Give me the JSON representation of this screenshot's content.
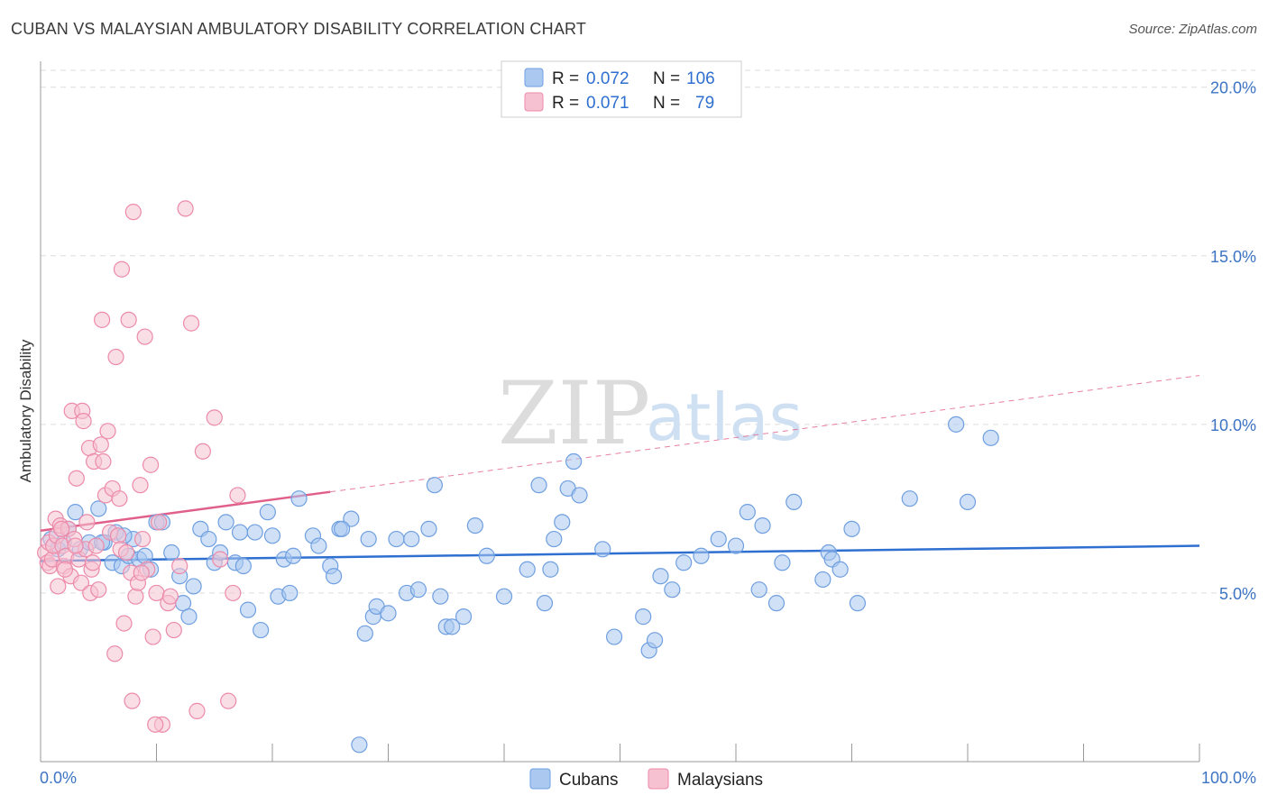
{
  "header": {
    "title": "CUBAN VS MALAYSIAN AMBULATORY DISABILITY CORRELATION CHART",
    "source": "Source: ZipAtlas.com"
  },
  "legend": {
    "rows": [
      {
        "r_label": "R =",
        "r_value": "0.072",
        "n_label": "N =",
        "n_value": "106",
        "color": "#7aaae6"
      },
      {
        "r_label": "R =",
        "r_value": "0.071",
        "n_label": "N =",
        "n_value": "79",
        "color": "#f0a0bc"
      }
    ]
  },
  "bottom_legend": [
    {
      "label": "Cubans",
      "color": "#7aaae6"
    },
    {
      "label": "Malaysians",
      "color": "#f0a0bc"
    }
  ],
  "watermark": {
    "zip": "ZIP",
    "atlas": "atlas"
  },
  "colors": {
    "blue_fill": "#aac8f0",
    "blue_stroke": "#6f9fe0",
    "blue_line": "#2f6fd0",
    "pink_fill": "#f6c2d2",
    "pink_stroke": "#ec8aaa",
    "pink_line": "#e0608a",
    "grid": "#dddddd",
    "axis": "#999999"
  },
  "chart_data": {
    "type": "scatter",
    "title": "CUBAN VS MALAYSIAN AMBULATORY DISABILITY CORRELATION CHART",
    "xlabel": "",
    "ylabel": "Ambulatory Disability",
    "xlim": [
      0,
      100
    ],
    "ylim": [
      0,
      20.5
    ],
    "x_tick_labels": [
      "0.0%",
      "100.0%"
    ],
    "y_ticks": [
      5,
      10,
      15,
      20
    ],
    "y_tick_labels": [
      "5.0%",
      "10.0%",
      "15.0%",
      "20.0%"
    ],
    "grid": true,
    "legend_position": "top-center",
    "series": [
      {
        "name": "Cubans",
        "r": 0.072,
        "n": 106,
        "trend": {
          "x0": 0,
          "y0": 5.95,
          "x1": 100,
          "y1": 6.4
        },
        "points": [
          [
            0.9,
            6.6
          ],
          [
            1.5,
            6.3
          ],
          [
            2.0,
            6.5
          ],
          [
            2.4,
            6.9
          ],
          [
            3.0,
            7.4
          ],
          [
            3.4,
            6.3
          ],
          [
            4.2,
            6.5
          ],
          [
            5.0,
            7.5
          ],
          [
            5.5,
            6.5
          ],
          [
            6.2,
            5.9
          ],
          [
            6.5,
            6.8
          ],
          [
            7.0,
            5.8
          ],
          [
            7.6,
            6.1
          ],
          [
            8.0,
            6.6
          ],
          [
            8.5,
            6.0
          ],
          [
            9.0,
            6.1
          ],
          [
            9.5,
            5.7
          ],
          [
            10.0,
            7.1
          ],
          [
            10.5,
            7.1
          ],
          [
            11.3,
            6.2
          ],
          [
            12.0,
            5.5
          ],
          [
            12.3,
            4.7
          ],
          [
            12.8,
            4.3
          ],
          [
            13.2,
            5.2
          ],
          [
            13.8,
            6.9
          ],
          [
            14.5,
            6.6
          ],
          [
            15.0,
            5.9
          ],
          [
            15.5,
            6.2
          ],
          [
            16.0,
            7.1
          ],
          [
            16.8,
            5.9
          ],
          [
            17.2,
            6.8
          ],
          [
            17.5,
            5.8
          ],
          [
            17.9,
            4.5
          ],
          [
            18.5,
            6.8
          ],
          [
            19.0,
            3.9
          ],
          [
            19.6,
            7.4
          ],
          [
            20.0,
            6.7
          ],
          [
            20.5,
            4.9
          ],
          [
            21.0,
            6.0
          ],
          [
            21.5,
            5.0
          ],
          [
            21.8,
            6.1
          ],
          [
            22.3,
            7.8
          ],
          [
            23.5,
            6.7
          ],
          [
            24.0,
            6.4
          ],
          [
            25.0,
            5.8
          ],
          [
            25.3,
            5.5
          ],
          [
            25.8,
            6.9
          ],
          [
            26.8,
            7.2
          ],
          [
            27.5,
            0.5
          ],
          [
            28.0,
            3.8
          ],
          [
            28.3,
            6.6
          ],
          [
            28.7,
            4.3
          ],
          [
            29.0,
            4.6
          ],
          [
            30.0,
            4.4
          ],
          [
            30.7,
            6.6
          ],
          [
            31.6,
            5.0
          ],
          [
            32.0,
            6.6
          ],
          [
            32.6,
            5.1
          ],
          [
            33.5,
            6.9
          ],
          [
            34.0,
            8.2
          ],
          [
            34.5,
            4.9
          ],
          [
            35.0,
            4.0
          ],
          [
            35.5,
            4.0
          ],
          [
            36.5,
            4.3
          ],
          [
            37.5,
            7.0
          ],
          [
            38.5,
            6.1
          ],
          [
            40.0,
            4.9
          ],
          [
            42.0,
            5.7
          ],
          [
            43.0,
            8.2
          ],
          [
            43.5,
            4.7
          ],
          [
            44.0,
            5.7
          ],
          [
            44.3,
            6.6
          ],
          [
            45.0,
            7.1
          ],
          [
            45.5,
            8.1
          ],
          [
            46.0,
            8.9
          ],
          [
            46.5,
            7.9
          ],
          [
            48.5,
            6.3
          ],
          [
            49.5,
            3.7
          ],
          [
            52.0,
            4.3
          ],
          [
            52.5,
            3.3
          ],
          [
            53.0,
            3.6
          ],
          [
            53.5,
            5.5
          ],
          [
            54.5,
            5.1
          ],
          [
            55.5,
            5.9
          ],
          [
            57.0,
            6.1
          ],
          [
            58.5,
            6.6
          ],
          [
            60.0,
            6.4
          ],
          [
            61.0,
            7.4
          ],
          [
            62.0,
            5.1
          ],
          [
            62.3,
            7.0
          ],
          [
            63.5,
            4.7
          ],
          [
            64.0,
            5.9
          ],
          [
            65.0,
            7.7
          ],
          [
            67.5,
            5.4
          ],
          [
            68.0,
            6.2
          ],
          [
            68.3,
            6.0
          ],
          [
            69.0,
            5.7
          ],
          [
            70.0,
            6.9
          ],
          [
            70.5,
            4.7
          ],
          [
            75.0,
            7.8
          ],
          [
            79.0,
            10.0
          ],
          [
            80.0,
            7.7
          ],
          [
            82.0,
            9.6
          ],
          [
            7.2,
            6.7
          ],
          [
            5.3,
            6.5
          ],
          [
            26.0,
            6.9
          ]
        ]
      },
      {
        "name": "Malaysians",
        "r": 0.071,
        "n": 79,
        "trend": {
          "x0": 0,
          "y0": 6.85,
          "x1": 25,
          "y1": 8.0,
          "dash_to_x": 100,
          "dash_to_y": 11.45
        },
        "points": [
          [
            0.4,
            6.2
          ],
          [
            0.6,
            5.9
          ],
          [
            0.7,
            6.5
          ],
          [
            0.8,
            5.8
          ],
          [
            1.0,
            6.0
          ],
          [
            1.1,
            6.4
          ],
          [
            1.3,
            7.2
          ],
          [
            1.4,
            6.7
          ],
          [
            1.5,
            5.2
          ],
          [
            1.7,
            7.0
          ],
          [
            1.9,
            6.4
          ],
          [
            2.0,
            5.8
          ],
          [
            2.2,
            6.1
          ],
          [
            2.4,
            6.9
          ],
          [
            2.6,
            5.5
          ],
          [
            2.7,
            10.4
          ],
          [
            2.9,
            6.6
          ],
          [
            3.1,
            8.4
          ],
          [
            3.3,
            6.0
          ],
          [
            3.5,
            5.3
          ],
          [
            3.6,
            10.4
          ],
          [
            3.7,
            10.1
          ],
          [
            3.9,
            6.3
          ],
          [
            4.0,
            7.1
          ],
          [
            4.2,
            9.3
          ],
          [
            4.3,
            5.0
          ],
          [
            4.4,
            5.7
          ],
          [
            4.6,
            8.9
          ],
          [
            4.8,
            6.4
          ],
          [
            5.0,
            5.1
          ],
          [
            5.2,
            9.4
          ],
          [
            5.3,
            13.1
          ],
          [
            5.4,
            8.9
          ],
          [
            5.6,
            7.9
          ],
          [
            5.8,
            9.8
          ],
          [
            6.0,
            6.8
          ],
          [
            6.2,
            8.1
          ],
          [
            6.4,
            3.2
          ],
          [
            6.5,
            12.0
          ],
          [
            6.7,
            6.7
          ],
          [
            6.9,
            6.3
          ],
          [
            7.0,
            14.6
          ],
          [
            7.2,
            4.1
          ],
          [
            7.4,
            6.2
          ],
          [
            7.6,
            13.1
          ],
          [
            7.8,
            5.6
          ],
          [
            8.0,
            16.3
          ],
          [
            8.2,
            4.9
          ],
          [
            8.4,
            5.3
          ],
          [
            8.6,
            8.2
          ],
          [
            8.8,
            6.6
          ],
          [
            9.0,
            12.6
          ],
          [
            9.2,
            5.7
          ],
          [
            9.5,
            8.8
          ],
          [
            9.7,
            3.7
          ],
          [
            10.0,
            5.0
          ],
          [
            10.2,
            7.1
          ],
          [
            10.5,
            1.1
          ],
          [
            11.0,
            4.7
          ],
          [
            11.5,
            3.9
          ],
          [
            12.0,
            5.8
          ],
          [
            12.5,
            16.4
          ],
          [
            13.0,
            13.0
          ],
          [
            13.5,
            1.5
          ],
          [
            14.0,
            9.2
          ],
          [
            15.0,
            10.2
          ],
          [
            15.5,
            6.0
          ],
          [
            16.2,
            1.8
          ],
          [
            16.6,
            5.0
          ],
          [
            17.0,
            7.9
          ],
          [
            7.9,
            1.8
          ],
          [
            8.7,
            5.6
          ],
          [
            9.9,
            1.1
          ],
          [
            11.2,
            4.9
          ],
          [
            1.8,
            6.9
          ],
          [
            2.1,
            5.7
          ],
          [
            3.0,
            6.4
          ],
          [
            4.5,
            5.9
          ],
          [
            6.8,
            7.8
          ]
        ]
      }
    ]
  }
}
